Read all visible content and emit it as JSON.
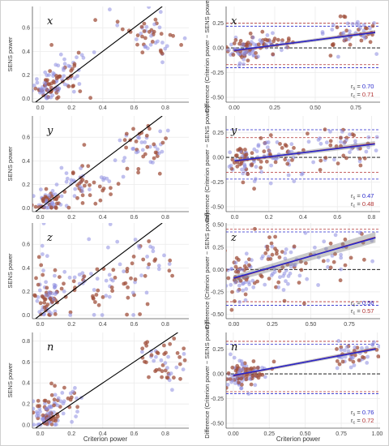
{
  "figure": {
    "left_ylabel": "SENS power",
    "right_ylabel": "Difference (Criterion power − SENS power)",
    "xlabel": "Criterion power",
    "colors": {
      "series1": "#8c8ce0",
      "series2": "#a0503c",
      "fit1": "#2a2acc",
      "fit2": "#b03030",
      "identity": "#000000"
    }
  },
  "chart_data": [
    {
      "type": "scatter",
      "panel": "x",
      "side": "left",
      "xlim": [
        -0.05,
        0.95
      ],
      "ylim": [
        -0.03,
        0.78
      ],
      "xticks": [
        "0.0",
        "0.2",
        "0.4",
        "0.6",
        "0.8"
      ],
      "yticks": [
        "0.0",
        "0.2",
        "0.4",
        "0.6"
      ],
      "identity_line": true,
      "clusters": [
        {
          "cx": 0.05,
          "cy": 0.1,
          "sx": 0.05,
          "sy": 0.06,
          "n": 70
        },
        {
          "cx": 0.18,
          "cy": 0.2,
          "sx": 0.07,
          "sy": 0.1,
          "n": 45
        },
        {
          "cx": 0.7,
          "cy": 0.55,
          "sx": 0.1,
          "sy": 0.1,
          "n": 55
        }
      ]
    },
    {
      "type": "scatter",
      "panel": "x",
      "side": "right",
      "xlim": [
        -0.05,
        0.9
      ],
      "ylim": [
        -0.55,
        0.42
      ],
      "xticks": [
        "0.00",
        "0.25",
        "0.50",
        "0.75"
      ],
      "yticks": [
        "0.25",
        "0.00",
        "-0.25",
        "-0.50"
      ],
      "hlines_blue": [
        0.22,
        -0.2
      ],
      "hlines_red": [
        0.25,
        -0.17
      ],
      "fit": {
        "intercept": -0.03,
        "slope": 0.22,
        "ci": 0.02
      },
      "r_labels": [
        {
          "prefix": "r",
          "sub": "s",
          "value": "0.70"
        },
        {
          "prefix": "r",
          "sub": "c",
          "value": "0.71"
        }
      ],
      "clusters": [
        {
          "cx": 0.05,
          "cy": -0.02,
          "sx": 0.05,
          "sy": 0.06,
          "n": 70
        },
        {
          "cx": 0.2,
          "cy": 0.03,
          "sx": 0.07,
          "sy": 0.07,
          "n": 45
        },
        {
          "cx": 0.7,
          "cy": 0.15,
          "sx": 0.1,
          "sy": 0.08,
          "n": 55
        }
      ]
    },
    {
      "type": "scatter",
      "panel": "y",
      "side": "left",
      "xlim": [
        -0.05,
        0.95
      ],
      "ylim": [
        -0.03,
        0.78
      ],
      "xticks": [
        "0.0",
        "0.2",
        "0.4",
        "0.6",
        "0.8"
      ],
      "yticks": [
        "0.0",
        "0.2",
        "0.4",
        "0.6"
      ],
      "identity_line": true,
      "clusters": [
        {
          "cx": 0.05,
          "cy": 0.05,
          "sx": 0.05,
          "sy": 0.04,
          "n": 60
        },
        {
          "cx": 0.25,
          "cy": 0.22,
          "sx": 0.12,
          "sy": 0.1,
          "n": 60
        },
        {
          "cx": 0.65,
          "cy": 0.5,
          "sx": 0.1,
          "sy": 0.1,
          "n": 50
        }
      ]
    },
    {
      "type": "scatter",
      "panel": "y",
      "side": "right",
      "xlim": [
        -0.05,
        0.85
      ],
      "ylim": [
        -0.55,
        0.42
      ],
      "xticks": [
        "0.0",
        "0.2",
        "0.4",
        "0.6",
        "0.8"
      ],
      "yticks": [
        "0.25",
        "0.00",
        "-0.25",
        "-0.50"
      ],
      "hlines_blue": [
        0.28,
        -0.22
      ],
      "hlines_red": [
        0.2,
        -0.15
      ],
      "fit": {
        "intercept": -0.04,
        "slope": 0.22,
        "ci": 0.025
      },
      "r_labels": [
        {
          "prefix": "r",
          "sub": "s",
          "value": "0.47"
        },
        {
          "prefix": "r",
          "sub": "c",
          "value": "0.48"
        }
      ],
      "clusters": [
        {
          "cx": 0.05,
          "cy": -0.02,
          "sx": 0.05,
          "sy": 0.08,
          "n": 60
        },
        {
          "cx": 0.25,
          "cy": 0.02,
          "sx": 0.12,
          "sy": 0.1,
          "n": 60
        },
        {
          "cx": 0.65,
          "cy": 0.12,
          "sx": 0.1,
          "sy": 0.1,
          "n": 50
        }
      ]
    },
    {
      "type": "scatter",
      "panel": "z",
      "side": "left",
      "xlim": [
        -0.05,
        0.95
      ],
      "ylim": [
        -0.03,
        0.78
      ],
      "xticks": [
        "0.0",
        "0.2",
        "0.4",
        "0.6",
        "0.8"
      ],
      "yticks": [
        "0.0",
        "0.2",
        "0.4",
        "0.6"
      ],
      "identity_line": true,
      "clusters": [
        {
          "cx": 0.05,
          "cy": 0.15,
          "sx": 0.05,
          "sy": 0.1,
          "n": 60
        },
        {
          "cx": 0.3,
          "cy": 0.25,
          "sx": 0.18,
          "sy": 0.15,
          "n": 80
        },
        {
          "cx": 0.7,
          "cy": 0.4,
          "sx": 0.12,
          "sy": 0.15,
          "n": 30
        }
      ]
    },
    {
      "type": "scatter",
      "panel": "z",
      "side": "right",
      "xlim": [
        -0.05,
        0.95
      ],
      "ylim": [
        -0.55,
        0.52
      ],
      "xticks": [
        "0.00",
        "0.25",
        "0.50",
        "0.75"
      ],
      "yticks": [
        "0.50",
        "0.25",
        "0.00",
        "-0.25",
        "-0.50"
      ],
      "hlines_blue": [
        0.42,
        -0.4
      ],
      "hlines_red": [
        0.45,
        -0.36
      ],
      "fit": {
        "intercept": -0.1,
        "slope": 0.5,
        "ci": 0.06
      },
      "r_labels": [
        {
          "prefix": "r",
          "sub": "s",
          "value": "0.56"
        },
        {
          "prefix": "r",
          "sub": "c",
          "value": "0.57"
        }
      ],
      "clusters": [
        {
          "cx": 0.05,
          "cy": -0.1,
          "sx": 0.05,
          "sy": 0.12,
          "n": 60
        },
        {
          "cx": 0.3,
          "cy": 0.05,
          "sx": 0.15,
          "sy": 0.18,
          "n": 80
        },
        {
          "cx": 0.7,
          "cy": 0.25,
          "sx": 0.12,
          "sy": 0.15,
          "n": 30
        }
      ]
    },
    {
      "type": "scatter",
      "panel": "n",
      "side": "left",
      "xlim": [
        -0.05,
        0.95
      ],
      "ylim": [
        -0.03,
        0.88
      ],
      "xticks": [
        "0.0",
        "0.2",
        "0.4",
        "0.6",
        "0.8"
      ],
      "yticks": [
        "0.0",
        "0.2",
        "0.4",
        "0.6",
        "0.8"
      ],
      "identity_line": true,
      "clusters": [
        {
          "cx": 0.04,
          "cy": 0.1,
          "sx": 0.04,
          "sy": 0.08,
          "n": 80
        },
        {
          "cx": 0.15,
          "cy": 0.2,
          "sx": 0.06,
          "sy": 0.1,
          "n": 30
        },
        {
          "cx": 0.8,
          "cy": 0.6,
          "sx": 0.08,
          "sy": 0.1,
          "n": 50
        }
      ]
    },
    {
      "type": "scatter",
      "panel": "n",
      "side": "right",
      "xlim": [
        -0.05,
        1.02
      ],
      "ylim": [
        -0.55,
        0.42
      ],
      "xticks": [
        "0.00",
        "0.25",
        "0.50",
        "0.75",
        "1.00"
      ],
      "yticks": [
        "0.25",
        "0.00",
        "-0.25",
        "-0.50"
      ],
      "hlines_blue": [
        0.3,
        -0.2
      ],
      "hlines_red": [
        0.33,
        -0.18
      ],
      "fit": {
        "intercept": -0.02,
        "slope": 0.28,
        "ci": 0.02
      },
      "r_labels": [
        {
          "prefix": "r",
          "sub": "s",
          "value": "0.76"
        },
        {
          "prefix": "r",
          "sub": "c",
          "value": "0.72"
        }
      ],
      "clusters": [
        {
          "cx": 0.04,
          "cy": -0.03,
          "sx": 0.04,
          "sy": 0.08,
          "n": 80
        },
        {
          "cx": 0.15,
          "cy": 0.02,
          "sx": 0.06,
          "sy": 0.06,
          "n": 30
        },
        {
          "cx": 0.85,
          "cy": 0.2,
          "sx": 0.08,
          "sy": 0.07,
          "n": 50
        }
      ]
    }
  ]
}
